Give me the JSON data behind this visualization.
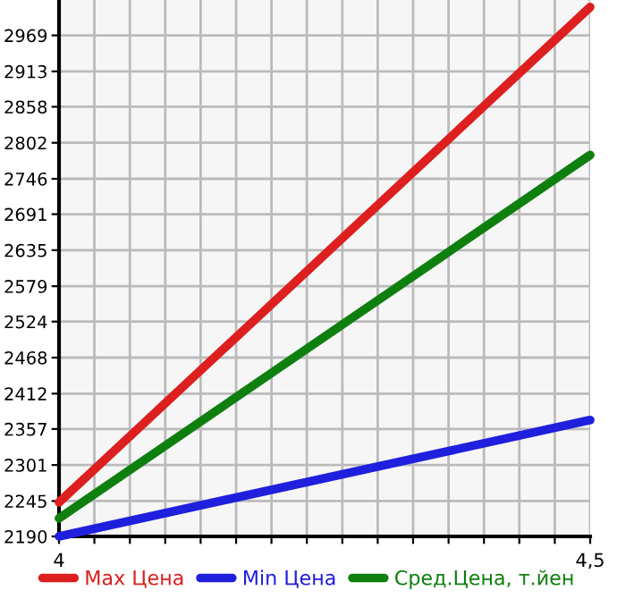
{
  "chart_data": {
    "type": "line",
    "x": [
      4,
      4.5
    ],
    "series": [
      {
        "name": "Max Цена",
        "color": "#dd1f1f",
        "values": [
          2243,
          3013
        ]
      },
      {
        "name": "Min Цена",
        "color": "#1f1fdd",
        "values": [
          2190,
          2371
        ]
      },
      {
        "name": "Сред.Цена, т.йен",
        "color": "#0f7f0f",
        "values": [
          2218,
          2783
        ]
      }
    ],
    "xlim": [
      4,
      4.5
    ],
    "xticks": [
      {
        "value": 4,
        "label": "4"
      },
      {
        "value": 4.0333,
        "label": null
      },
      {
        "value": 4.0667,
        "label": null
      },
      {
        "value": 4.1,
        "label": null
      },
      {
        "value": 4.1333,
        "label": null
      },
      {
        "value": 4.1667,
        "label": null
      },
      {
        "value": 4.2,
        "label": null
      },
      {
        "value": 4.2333,
        "label": null
      },
      {
        "value": 4.2667,
        "label": null
      },
      {
        "value": 4.3,
        "label": null
      },
      {
        "value": 4.3333,
        "label": null
      },
      {
        "value": 4.3667,
        "label": null
      },
      {
        "value": 4.4,
        "label": null
      },
      {
        "value": 4.4333,
        "label": null
      },
      {
        "value": 4.4667,
        "label": null
      },
      {
        "value": 4.5,
        "label": "4,5"
      }
    ],
    "ylim": [
      2190,
      3024
    ],
    "yticks": [
      2190,
      2245,
      2301,
      2357,
      2412,
      2468,
      2524,
      2579,
      2635,
      2691,
      2746,
      2802,
      2858,
      2913,
      2969
    ],
    "grid": true,
    "legend": "bottom",
    "marker": "none",
    "line_style": "solid"
  }
}
